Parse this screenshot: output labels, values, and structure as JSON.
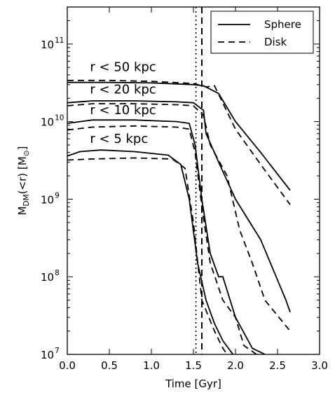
{
  "chart_data": {
    "type": "line",
    "xlabel": "Time [Gyr]",
    "ylabel": "M_DM(<r) [M_⊙]",
    "ylabel_parts": {
      "main": "M",
      "sub": "DM",
      "mid": "(<r) [M",
      "sub2": "⊙",
      "end": "]"
    },
    "xlim": [
      0.0,
      3.0
    ],
    "ylim": [
      10000000.0,
      300000000000.0
    ],
    "yscale": "log",
    "x_ticks": [
      "0.0",
      "0.5",
      "1.0",
      "1.5",
      "2.0",
      "2.5",
      "3.0"
    ],
    "y_ticks": [
      {
        "base": "10",
        "exp": "7"
      },
      {
        "base": "10",
        "exp": "8"
      },
      {
        "base": "10",
        "exp": "9"
      },
      {
        "base": "10",
        "exp": "10"
      },
      {
        "base": "10",
        "exp": "11"
      }
    ],
    "vlines": [
      {
        "x": 1.53,
        "style": "dotted"
      },
      {
        "x": 1.6,
        "style": "dashed"
      }
    ],
    "legend": {
      "placement": "top-right",
      "entries": [
        {
          "label": "Sphere",
          "style": "solid"
        },
        {
          "label": "Disk",
          "style": "dashed"
        }
      ]
    },
    "annotations": [
      {
        "text": "r < 50 kpc",
        "x": 0.27,
        "y": 45000000000.0
      },
      {
        "text": "r < 20 kpc",
        "x": 0.27,
        "y": 23000000000.0
      },
      {
        "text": "r < 10 kpc",
        "x": 0.27,
        "y": 12500000000.0
      },
      {
        "text": "r < 5 kpc",
        "x": 0.27,
        "y": 5300000000.0
      }
    ],
    "series": [
      {
        "style": "solid",
        "x": [
          0.0,
          0.5,
          1.0,
          1.5,
          1.62,
          1.8,
          2.0,
          2.3,
          2.65
        ],
        "y": [
          32000000000.0,
          32000000000.0,
          31500000000.0,
          30000000000.0,
          29000000000.0,
          23000000000.0,
          10000000000.0,
          4000000000.0,
          1300000000.0
        ]
      },
      {
        "style": "dashed",
        "x": [
          0.0,
          0.5,
          1.0,
          1.5,
          1.65,
          1.75,
          2.0,
          2.3,
          2.65
        ],
        "y": [
          34000000000.0,
          34000000000.0,
          33000000000.0,
          31000000000.0,
          28000000000.0,
          29000000000.0,
          8000000000.0,
          2800000000.0,
          850000000.0
        ]
      },
      {
        "style": "solid",
        "x": [
          0.0,
          0.3,
          0.8,
          1.3,
          1.5,
          1.62,
          1.65,
          1.8,
          2.0,
          2.3,
          2.6,
          2.65
        ],
        "y": [
          17500000000.0,
          18500000000.0,
          18500000000.0,
          18000000000.0,
          17500000000.0,
          14000000000.0,
          7000000000.0,
          3000000000.0,
          1000000000.0,
          300000000.0,
          50000000.0,
          35000000.0
        ]
      },
      {
        "style": "dashed",
        "x": [
          0.0,
          0.3,
          0.8,
          1.3,
          1.5,
          1.62,
          1.7,
          1.9,
          2.05,
          2.2,
          2.35,
          2.65
        ],
        "y": [
          16000000000.0,
          17000000000.0,
          17000000000.0,
          16500000000.0,
          16000000000.0,
          12000000000.0,
          5000000000.0,
          2000000000.0,
          400000000.0,
          150000000.0,
          50000000.0,
          20000000.0
        ]
      },
      {
        "style": "solid",
        "x": [
          0.0,
          0.3,
          0.8,
          1.3,
          1.45,
          1.52,
          1.6,
          1.7,
          1.8,
          1.85,
          2.0,
          2.2,
          2.35
        ],
        "y": [
          9500000000.0,
          10500000000.0,
          10500000000.0,
          10000000000.0,
          9500000000.0,
          5000000000.0,
          1000000000.0,
          200000000.0,
          100000000.0,
          100000000.0,
          30000000.0,
          12000000.0,
          10000000.0
        ]
      },
      {
        "style": "dashed",
        "x": [
          0.0,
          0.3,
          0.8,
          1.3,
          1.45,
          1.52,
          1.6,
          1.7,
          1.85,
          2.0,
          2.1,
          2.25
        ],
        "y": [
          7800000000.0,
          8500000000.0,
          8800000000.0,
          8500000000.0,
          8000000000.0,
          4000000000.0,
          800000000.0,
          150000000.0,
          50000000.0,
          30000000.0,
          13000000.0,
          10000000.0
        ]
      },
      {
        "style": "solid",
        "x": [
          0.0,
          0.15,
          0.4,
          0.8,
          1.2,
          1.35,
          1.45,
          1.55,
          1.65,
          1.75,
          1.85,
          1.97
        ],
        "y": [
          3600000000.0,
          4100000000.0,
          4300000000.0,
          4100000000.0,
          3700000000.0,
          2800000000.0,
          1000000000.0,
          150000000.0,
          50000000.0,
          25000000.0,
          15000000.0,
          10000000.0
        ]
      },
      {
        "style": "dashed",
        "x": [
          0.0,
          0.3,
          0.8,
          1.25,
          1.4,
          1.5,
          1.6,
          1.75,
          1.85,
          1.9
        ],
        "y": [
          3200000000.0,
          3300000000.0,
          3400000000.0,
          3300000000.0,
          2500000000.0,
          500000000.0,
          50000000.0,
          20000000.0,
          12000000.0,
          10000000.0
        ]
      }
    ]
  }
}
